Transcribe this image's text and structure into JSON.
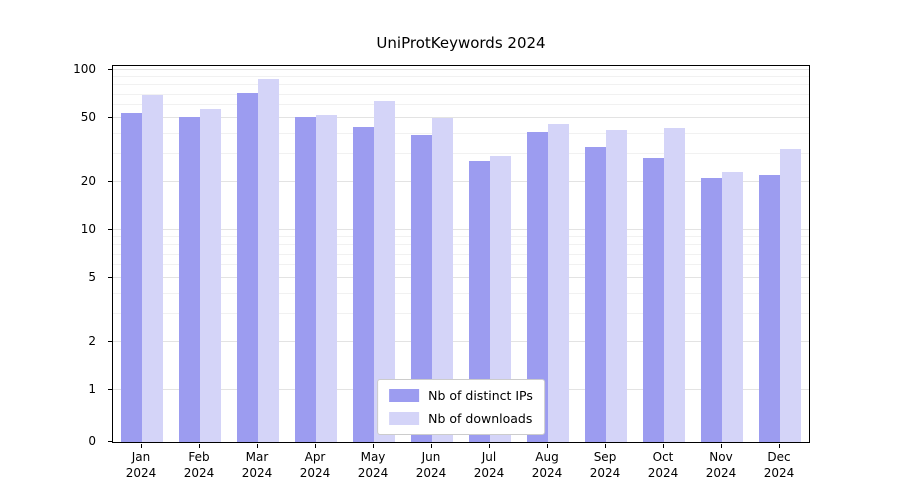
{
  "chart_data": {
    "type": "bar",
    "title": "UniProtKeywords 2024",
    "y_scale": "symlog",
    "grid": true,
    "ylim": [
      0,
      100
    ],
    "yticks": [
      0,
      1,
      2,
      5,
      10,
      20,
      50,
      100
    ],
    "legend_position": "lower center",
    "categories": [
      "Jan 2024",
      "Feb 2024",
      "Mar 2024",
      "Apr 2024",
      "May 2024",
      "Jun 2024",
      "Jul 2024",
      "Aug 2024",
      "Sep 2024",
      "Oct 2024",
      "Nov 2024",
      "Dec 2024"
    ],
    "series": [
      {
        "name": "Nb of distinct IPs",
        "color": "#9c9cf0",
        "values": [
          54,
          51,
          72,
          51,
          44,
          39,
          27,
          41,
          33,
          28,
          21,
          22
        ]
      },
      {
        "name": "Nb of downloads",
        "color": "#d4d4f8",
        "values": [
          70,
          57,
          88,
          52,
          64,
          50,
          29,
          46,
          42,
          43,
          23,
          32
        ]
      }
    ]
  }
}
